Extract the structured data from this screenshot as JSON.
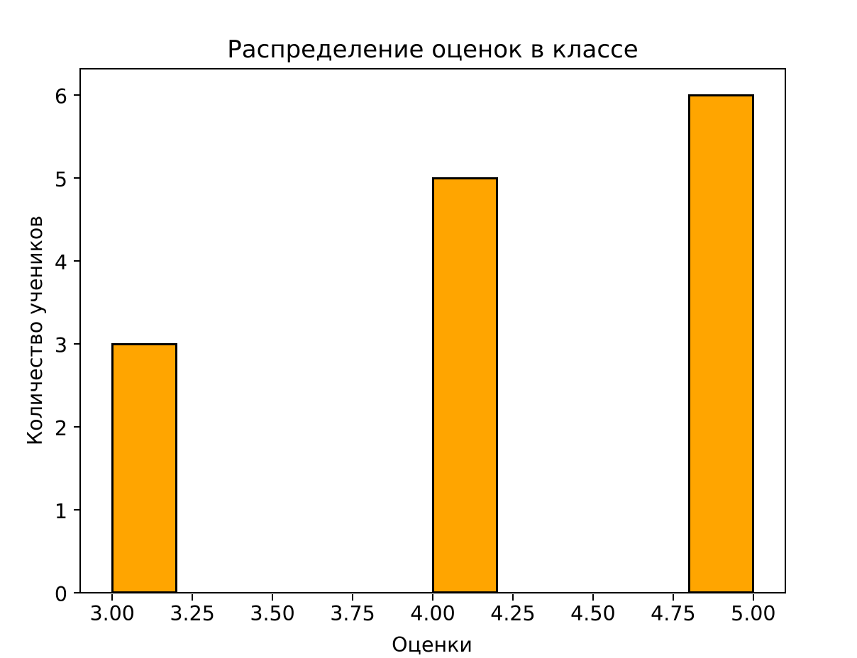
{
  "chart_data": {
    "type": "bar",
    "title": "Распределение оценок в классе",
    "xlabel": "Оценки",
    "ylabel": "Количество учеников",
    "bars": [
      {
        "x_start": 3.0,
        "x_end": 3.2,
        "value": 3
      },
      {
        "x_start": 4.0,
        "x_end": 4.2,
        "value": 5
      },
      {
        "x_start": 4.8,
        "x_end": 5.0,
        "value": 6
      }
    ],
    "x_tick_labels": [
      "3.00",
      "3.25",
      "3.50",
      "3.75",
      "4.00",
      "4.25",
      "4.50",
      "4.75",
      "5.00"
    ],
    "x_tick_values": [
      3.0,
      3.25,
      3.5,
      3.75,
      4.0,
      4.25,
      4.5,
      4.75,
      5.0
    ],
    "y_tick_labels": [
      "0",
      "1",
      "2",
      "3",
      "4",
      "5",
      "6"
    ],
    "y_tick_values": [
      0,
      1,
      2,
      3,
      4,
      5,
      6
    ],
    "xlim": [
      2.9,
      5.1
    ],
    "ylim": [
      0,
      6.3
    ],
    "bar_color": "#FFA500",
    "bar_edge_color": "#000000",
    "grid": false,
    "legend_position": null
  }
}
